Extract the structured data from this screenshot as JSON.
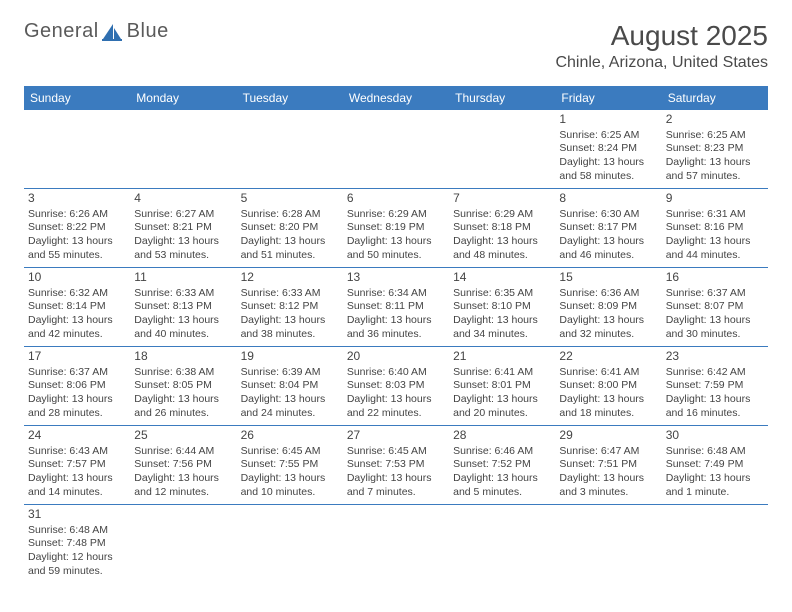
{
  "logo": {
    "general_text": "General",
    "blue_text": "Blue",
    "sail_color": "#2f6fb0",
    "text_color": "#5a5a5a"
  },
  "header": {
    "month_title": "August 2025",
    "location": "Chinle, Arizona, United States"
  },
  "styles": {
    "header_bg": "#3b7bbf",
    "header_text": "#ffffff",
    "week_border": "#3b7bbf",
    "cell_text": "#444444",
    "page_bg": "#ffffff"
  },
  "day_labels": [
    "Sunday",
    "Monday",
    "Tuesday",
    "Wednesday",
    "Thursday",
    "Friday",
    "Saturday"
  ],
  "weeks": [
    [
      null,
      null,
      null,
      null,
      null,
      {
        "num": "1",
        "sunrise": "Sunrise: 6:25 AM",
        "sunset": "Sunset: 8:24 PM",
        "daylight": "Daylight: 13 hours and 58 minutes."
      },
      {
        "num": "2",
        "sunrise": "Sunrise: 6:25 AM",
        "sunset": "Sunset: 8:23 PM",
        "daylight": "Daylight: 13 hours and 57 minutes."
      }
    ],
    [
      {
        "num": "3",
        "sunrise": "Sunrise: 6:26 AM",
        "sunset": "Sunset: 8:22 PM",
        "daylight": "Daylight: 13 hours and 55 minutes."
      },
      {
        "num": "4",
        "sunrise": "Sunrise: 6:27 AM",
        "sunset": "Sunset: 8:21 PM",
        "daylight": "Daylight: 13 hours and 53 minutes."
      },
      {
        "num": "5",
        "sunrise": "Sunrise: 6:28 AM",
        "sunset": "Sunset: 8:20 PM",
        "daylight": "Daylight: 13 hours and 51 minutes."
      },
      {
        "num": "6",
        "sunrise": "Sunrise: 6:29 AM",
        "sunset": "Sunset: 8:19 PM",
        "daylight": "Daylight: 13 hours and 50 minutes."
      },
      {
        "num": "7",
        "sunrise": "Sunrise: 6:29 AM",
        "sunset": "Sunset: 8:18 PM",
        "daylight": "Daylight: 13 hours and 48 minutes."
      },
      {
        "num": "8",
        "sunrise": "Sunrise: 6:30 AM",
        "sunset": "Sunset: 8:17 PM",
        "daylight": "Daylight: 13 hours and 46 minutes."
      },
      {
        "num": "9",
        "sunrise": "Sunrise: 6:31 AM",
        "sunset": "Sunset: 8:16 PM",
        "daylight": "Daylight: 13 hours and 44 minutes."
      }
    ],
    [
      {
        "num": "10",
        "sunrise": "Sunrise: 6:32 AM",
        "sunset": "Sunset: 8:14 PM",
        "daylight": "Daylight: 13 hours and 42 minutes."
      },
      {
        "num": "11",
        "sunrise": "Sunrise: 6:33 AM",
        "sunset": "Sunset: 8:13 PM",
        "daylight": "Daylight: 13 hours and 40 minutes."
      },
      {
        "num": "12",
        "sunrise": "Sunrise: 6:33 AM",
        "sunset": "Sunset: 8:12 PM",
        "daylight": "Daylight: 13 hours and 38 minutes."
      },
      {
        "num": "13",
        "sunrise": "Sunrise: 6:34 AM",
        "sunset": "Sunset: 8:11 PM",
        "daylight": "Daylight: 13 hours and 36 minutes."
      },
      {
        "num": "14",
        "sunrise": "Sunrise: 6:35 AM",
        "sunset": "Sunset: 8:10 PM",
        "daylight": "Daylight: 13 hours and 34 minutes."
      },
      {
        "num": "15",
        "sunrise": "Sunrise: 6:36 AM",
        "sunset": "Sunset: 8:09 PM",
        "daylight": "Daylight: 13 hours and 32 minutes."
      },
      {
        "num": "16",
        "sunrise": "Sunrise: 6:37 AM",
        "sunset": "Sunset: 8:07 PM",
        "daylight": "Daylight: 13 hours and 30 minutes."
      }
    ],
    [
      {
        "num": "17",
        "sunrise": "Sunrise: 6:37 AM",
        "sunset": "Sunset: 8:06 PM",
        "daylight": "Daylight: 13 hours and 28 minutes."
      },
      {
        "num": "18",
        "sunrise": "Sunrise: 6:38 AM",
        "sunset": "Sunset: 8:05 PM",
        "daylight": "Daylight: 13 hours and 26 minutes."
      },
      {
        "num": "19",
        "sunrise": "Sunrise: 6:39 AM",
        "sunset": "Sunset: 8:04 PM",
        "daylight": "Daylight: 13 hours and 24 minutes."
      },
      {
        "num": "20",
        "sunrise": "Sunrise: 6:40 AM",
        "sunset": "Sunset: 8:03 PM",
        "daylight": "Daylight: 13 hours and 22 minutes."
      },
      {
        "num": "21",
        "sunrise": "Sunrise: 6:41 AM",
        "sunset": "Sunset: 8:01 PM",
        "daylight": "Daylight: 13 hours and 20 minutes."
      },
      {
        "num": "22",
        "sunrise": "Sunrise: 6:41 AM",
        "sunset": "Sunset: 8:00 PM",
        "daylight": "Daylight: 13 hours and 18 minutes."
      },
      {
        "num": "23",
        "sunrise": "Sunrise: 6:42 AM",
        "sunset": "Sunset: 7:59 PM",
        "daylight": "Daylight: 13 hours and 16 minutes."
      }
    ],
    [
      {
        "num": "24",
        "sunrise": "Sunrise: 6:43 AM",
        "sunset": "Sunset: 7:57 PM",
        "daylight": "Daylight: 13 hours and 14 minutes."
      },
      {
        "num": "25",
        "sunrise": "Sunrise: 6:44 AM",
        "sunset": "Sunset: 7:56 PM",
        "daylight": "Daylight: 13 hours and 12 minutes."
      },
      {
        "num": "26",
        "sunrise": "Sunrise: 6:45 AM",
        "sunset": "Sunset: 7:55 PM",
        "daylight": "Daylight: 13 hours and 10 minutes."
      },
      {
        "num": "27",
        "sunrise": "Sunrise: 6:45 AM",
        "sunset": "Sunset: 7:53 PM",
        "daylight": "Daylight: 13 hours and 7 minutes."
      },
      {
        "num": "28",
        "sunrise": "Sunrise: 6:46 AM",
        "sunset": "Sunset: 7:52 PM",
        "daylight": "Daylight: 13 hours and 5 minutes."
      },
      {
        "num": "29",
        "sunrise": "Sunrise: 6:47 AM",
        "sunset": "Sunset: 7:51 PM",
        "daylight": "Daylight: 13 hours and 3 minutes."
      },
      {
        "num": "30",
        "sunrise": "Sunrise: 6:48 AM",
        "sunset": "Sunset: 7:49 PM",
        "daylight": "Daylight: 13 hours and 1 minute."
      }
    ],
    [
      {
        "num": "31",
        "sunrise": "Sunrise: 6:48 AM",
        "sunset": "Sunset: 7:48 PM",
        "daylight": "Daylight: 12 hours and 59 minutes."
      },
      null,
      null,
      null,
      null,
      null,
      null
    ]
  ]
}
